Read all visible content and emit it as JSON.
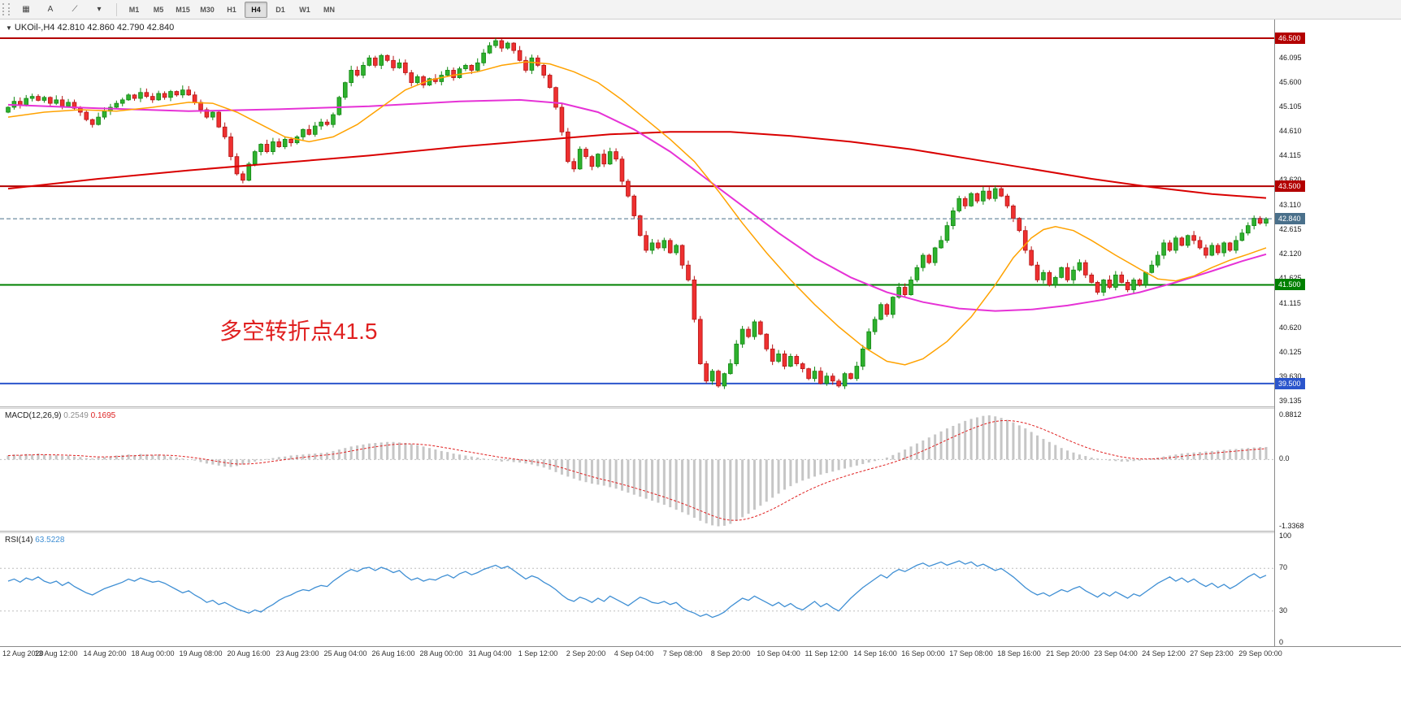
{
  "toolbar": {
    "icons": [
      {
        "name": "chart-window-icon",
        "glyph": "▦"
      },
      {
        "name": "crosshair-a-icon",
        "glyph": "A"
      },
      {
        "name": "draw-tools-icon",
        "glyph": "⟋"
      },
      {
        "name": "dropdown-caret-icon",
        "glyph": "▾"
      }
    ],
    "timeframes": [
      "M1",
      "M5",
      "M15",
      "M30",
      "H1",
      "H4",
      "D1",
      "W1",
      "MN"
    ],
    "active_timeframe": "H4"
  },
  "header": {
    "collapse_glyph": "▼",
    "symbol_period": "UKOil-,H4",
    "ohlc": "42.810 42.860 42.790 42.840"
  },
  "chart_data": {
    "type": "candlestick_with_indicators",
    "symbol": "UKOil-",
    "timeframe": "H4",
    "annotation": {
      "text": "多空转折点41.5",
      "color": "#e02020"
    },
    "price_axis": [
      "46.095",
      "45.600",
      "45.105",
      "44.610",
      "44.115",
      "43.620",
      "43.110",
      "42.615",
      "42.120",
      "41.625",
      "41.115",
      "40.620",
      "40.125",
      "39.630",
      "39.135"
    ],
    "hlines": [
      {
        "label": "46.500",
        "value": 46.5,
        "color": "#b30000"
      },
      {
        "label": "43.500",
        "value": 43.5,
        "color": "#b30000"
      },
      {
        "label": "41.500",
        "value": 41.5,
        "color": "#008000"
      },
      {
        "label": "39.500",
        "value": 39.5,
        "color": "#2b55cc"
      }
    ],
    "current_price": {
      "label": "42.840",
      "value": 42.84,
      "color": "#4a708b"
    },
    "x_labels": [
      "12 Aug 2020",
      "13 Aug 12:00",
      "14 Aug 20:00",
      "18 Aug 00:00",
      "19 Aug 08:00",
      "20 Aug 16:00",
      "23 Aug 23:00",
      "25 Aug 04:00",
      "26 Aug 16:00",
      "28 Aug 00:00",
      "31 Aug 04:00",
      "1 Sep 12:00",
      "2 Sep 20:00",
      "4 Sep 04:00",
      "7 Sep 08:00",
      "8 Sep 20:00",
      "10 Sep 04:00",
      "11 Sep 12:00",
      "14 Sep 16:00",
      "16 Sep 00:00",
      "17 Sep 08:00",
      "18 Sep 16:00",
      "21 Sep 20:00",
      "23 Sep 04:00",
      "24 Sep 12:00",
      "27 Sep 23:00",
      "29 Sep 00:00"
    ],
    "colors": {
      "up_fill": "#2eb12e",
      "up_stroke": "#128712",
      "down_fill": "#ee3030",
      "down_stroke": "#b51515",
      "ma_slow": "#d90000",
      "ma_mid": "#e632d6",
      "ma_fast": "#ffa200",
      "macd_hist": "#c6c6c6",
      "macd_signal": "#e02020",
      "rsi_line": "#3f8fd4",
      "level_dotted": "#bdbdbd"
    },
    "candles": {
      "first_open": 45.0,
      "closes": [
        45.1,
        45.22,
        45.15,
        45.28,
        45.32,
        45.24,
        45.3,
        45.18,
        45.25,
        45.12,
        45.2,
        45.08,
        45.0,
        44.85,
        44.75,
        44.9,
        45.02,
        45.1,
        45.18,
        45.25,
        45.35,
        45.28,
        45.4,
        45.32,
        45.25,
        45.38,
        45.3,
        45.42,
        45.35,
        45.45,
        45.35,
        45.2,
        45.05,
        44.9,
        45.0,
        44.7,
        44.5,
        44.1,
        43.75,
        43.62,
        43.95,
        44.2,
        44.35,
        44.2,
        44.4,
        44.3,
        44.45,
        44.38,
        44.5,
        44.65,
        44.55,
        44.72,
        44.8,
        44.75,
        44.95,
        45.3,
        45.6,
        45.85,
        45.75,
        45.95,
        46.1,
        45.95,
        46.15,
        46.05,
        45.9,
        46.0,
        45.8,
        45.6,
        45.72,
        45.55,
        45.68,
        45.62,
        45.75,
        45.85,
        45.7,
        45.88,
        45.95,
        45.85,
        46.0,
        46.2,
        46.35,
        46.45,
        46.3,
        46.4,
        46.25,
        46.05,
        45.85,
        46.1,
        45.95,
        45.75,
        45.5,
        45.1,
        44.6,
        44.0,
        43.85,
        44.25,
        44.1,
        43.9,
        44.15,
        43.95,
        44.2,
        44.05,
        43.6,
        43.3,
        42.9,
        42.5,
        42.2,
        42.35,
        42.25,
        42.4,
        42.15,
        42.3,
        41.9,
        41.6,
        40.8,
        39.9,
        39.55,
        39.75,
        39.45,
        39.7,
        39.9,
        40.3,
        40.6,
        40.45,
        40.75,
        40.5,
        40.2,
        39.95,
        40.1,
        39.85,
        40.05,
        39.9,
        39.8,
        39.6,
        39.75,
        39.5,
        39.65,
        39.55,
        39.45,
        39.7,
        39.6,
        39.85,
        40.2,
        40.55,
        40.8,
        41.1,
        40.9,
        41.25,
        41.45,
        41.3,
        41.6,
        41.85,
        42.1,
        41.95,
        42.25,
        42.4,
        42.7,
        43.0,
        43.25,
        43.1,
        43.35,
        43.2,
        43.4,
        43.25,
        43.45,
        43.3,
        43.1,
        42.85,
        42.6,
        42.2,
        41.9,
        41.6,
        41.75,
        41.5,
        41.65,
        41.85,
        41.6,
        41.8,
        41.95,
        41.7,
        41.55,
        41.35,
        41.6,
        41.45,
        41.7,
        41.55,
        41.4,
        41.6,
        41.5,
        41.75,
        41.9,
        42.1,
        42.35,
        42.2,
        42.45,
        42.3,
        42.5,
        42.4,
        42.25,
        42.1,
        42.3,
        42.15,
        42.35,
        42.2,
        42.4,
        42.55,
        42.7,
        42.85,
        42.75,
        42.84
      ]
    },
    "ma": {
      "slow_red": [
        [
          0,
          43.45
        ],
        [
          15,
          43.65
        ],
        [
          30,
          43.82
        ],
        [
          45,
          43.97
        ],
        [
          60,
          44.12
        ],
        [
          75,
          44.3
        ],
        [
          90,
          44.45
        ],
        [
          100,
          44.55
        ],
        [
          110,
          44.6
        ],
        [
          120,
          44.6
        ],
        [
          130,
          44.52
        ],
        [
          140,
          44.4
        ],
        [
          150,
          44.25
        ],
        [
          160,
          44.05
        ],
        [
          170,
          43.85
        ],
        [
          180,
          43.65
        ],
        [
          190,
          43.48
        ],
        [
          200,
          43.34
        ],
        [
          209,
          43.26
        ]
      ],
      "mid_magenta": [
        [
          0,
          45.15
        ],
        [
          15,
          45.08
        ],
        [
          30,
          45.02
        ],
        [
          45,
          45.06
        ],
        [
          60,
          45.12
        ],
        [
          75,
          45.22
        ],
        [
          85,
          45.25
        ],
        [
          92,
          45.18
        ],
        [
          98,
          45.0
        ],
        [
          104,
          44.65
        ],
        [
          110,
          44.2
        ],
        [
          116,
          43.65
        ],
        [
          122,
          43.1
        ],
        [
          128,
          42.55
        ],
        [
          134,
          42.05
        ],
        [
          140,
          41.65
        ],
        [
          146,
          41.35
        ],
        [
          152,
          41.15
        ],
        [
          158,
          41.02
        ],
        [
          164,
          40.97
        ],
        [
          170,
          41.0
        ],
        [
          176,
          41.08
        ],
        [
          182,
          41.2
        ],
        [
          188,
          41.35
        ],
        [
          194,
          41.55
        ],
        [
          200,
          41.78
        ],
        [
          205,
          41.98
        ],
        [
          209,
          42.12
        ]
      ],
      "fast_orange": [
        [
          0,
          44.9
        ],
        [
          6,
          45.0
        ],
        [
          12,
          45.05
        ],
        [
          18,
          45.02
        ],
        [
          24,
          45.1
        ],
        [
          30,
          45.2
        ],
        [
          34,
          45.18
        ],
        [
          38,
          45.0
        ],
        [
          42,
          44.75
        ],
        [
          46,
          44.5
        ],
        [
          50,
          44.4
        ],
        [
          54,
          44.5
        ],
        [
          58,
          44.75
        ],
        [
          62,
          45.1
        ],
        [
          66,
          45.45
        ],
        [
          70,
          45.65
        ],
        [
          74,
          45.75
        ],
        [
          78,
          45.82
        ],
        [
          82,
          45.95
        ],
        [
          86,
          46.02
        ],
        [
          90,
          45.98
        ],
        [
          94,
          45.82
        ],
        [
          98,
          45.6
        ],
        [
          102,
          45.25
        ],
        [
          106,
          44.85
        ],
        [
          110,
          44.45
        ],
        [
          114,
          44.0
        ],
        [
          118,
          43.4
        ],
        [
          122,
          42.75
        ],
        [
          126,
          42.15
        ],
        [
          130,
          41.6
        ],
        [
          134,
          41.1
        ],
        [
          138,
          40.65
        ],
        [
          142,
          40.25
        ],
        [
          146,
          39.95
        ],
        [
          149,
          39.88
        ],
        [
          152,
          40.0
        ],
        [
          156,
          40.35
        ],
        [
          160,
          40.85
        ],
        [
          164,
          41.5
        ],
        [
          167,
          42.05
        ],
        [
          170,
          42.45
        ],
        [
          172,
          42.62
        ],
        [
          174,
          42.68
        ],
        [
          177,
          42.6
        ],
        [
          180,
          42.4
        ],
        [
          184,
          42.1
        ],
        [
          188,
          41.82
        ],
        [
          191,
          41.62
        ],
        [
          194,
          41.58
        ],
        [
          197,
          41.68
        ],
        [
          200,
          41.85
        ],
        [
          203,
          42.0
        ],
        [
          206,
          42.12
        ],
        [
          209,
          42.25
        ]
      ]
    },
    "macd": {
      "label": "MACD(12,26,9)",
      "value_main": "0.2549",
      "value_signal": "0.1695",
      "axis": [
        {
          "label": "0.8812",
          "value": 0.8812
        },
        {
          "label": "0.0",
          "value": 0
        },
        {
          "label": "-1.3368",
          "value": -1.3368
        }
      ],
      "values": [
        0.08,
        0.1,
        0.09,
        0.11,
        0.1,
        0.12,
        0.1,
        0.08,
        0.09,
        0.07,
        0.08,
        0.06,
        0.05,
        0.03,
        0.02,
        0.04,
        0.05,
        0.06,
        0.08,
        0.09,
        0.1,
        0.09,
        0.11,
        0.1,
        0.09,
        0.1,
        0.08,
        0.06,
        0.04,
        0.02,
        0.0,
        -0.02,
        -0.05,
        -0.08,
        -0.1,
        -0.12,
        -0.14,
        -0.15,
        -0.13,
        -0.1,
        -0.07,
        -0.04,
        -0.02,
        0.01,
        0.03,
        0.05,
        0.06,
        0.08,
        0.09,
        0.1,
        0.11,
        0.12,
        0.13,
        0.14,
        0.17,
        0.2,
        0.23,
        0.26,
        0.28,
        0.3,
        0.32,
        0.33,
        0.34,
        0.35,
        0.35,
        0.34,
        0.33,
        0.31,
        0.29,
        0.26,
        0.23,
        0.2,
        0.17,
        0.15,
        0.12,
        0.1,
        0.08,
        0.06,
        0.04,
        0.02,
        0.0,
        -0.02,
        -0.04,
        -0.03,
        -0.05,
        -0.06,
        -0.08,
        -0.1,
        -0.13,
        -0.16,
        -0.2,
        -0.25,
        -0.3,
        -0.34,
        -0.38,
        -0.42,
        -0.45,
        -0.48,
        -0.5,
        -0.52,
        -0.55,
        -0.58,
        -0.62,
        -0.66,
        -0.7,
        -0.74,
        -0.78,
        -0.82,
        -0.86,
        -0.9,
        -0.95,
        -1.0,
        -1.05,
        -1.1,
        -1.16,
        -1.22,
        -1.27,
        -1.31,
        -1.33,
        -1.32,
        -1.28,
        -1.22,
        -1.15,
        -1.08,
        -1.0,
        -0.92,
        -0.84,
        -0.76,
        -0.68,
        -0.6,
        -0.53,
        -0.47,
        -0.42,
        -0.38,
        -0.34,
        -0.3,
        -0.27,
        -0.24,
        -0.21,
        -0.18,
        -0.15,
        -0.12,
        -0.09,
        -0.06,
        -0.03,
        0.0,
        0.04,
        0.09,
        0.14,
        0.2,
        0.26,
        0.32,
        0.38,
        0.44,
        0.5,
        0.56,
        0.62,
        0.67,
        0.72,
        0.77,
        0.81,
        0.84,
        0.87,
        0.88,
        0.86,
        0.83,
        0.79,
        0.74,
        0.68,
        0.62,
        0.55,
        0.48,
        0.41,
        0.35,
        0.29,
        0.23,
        0.18,
        0.14,
        0.1,
        0.07,
        0.04,
        0.02,
        0.0,
        -0.02,
        -0.03,
        -0.04,
        -0.04,
        -0.03,
        -0.02,
        0.0,
        0.02,
        0.04,
        0.06,
        0.08,
        0.1,
        0.12,
        0.13,
        0.14,
        0.15,
        0.16,
        0.17,
        0.18,
        0.19,
        0.2,
        0.21,
        0.22,
        0.23,
        0.24,
        0.25,
        0.25
      ]
    },
    "rsi": {
      "label": "RSI(14)",
      "value": "63.5228",
      "axis": [
        {
          "label": "100",
          "value": 100
        },
        {
          "label": "70",
          "value": 70
        },
        {
          "label": "30",
          "value": 30
        },
        {
          "label": "0",
          "value": 0
        }
      ],
      "levels": [
        70,
        30
      ],
      "values": [
        58,
        60,
        57,
        61,
        59,
        62,
        58,
        56,
        58,
        54,
        57,
        53,
        50,
        47,
        45,
        48,
        51,
        53,
        55,
        57,
        60,
        58,
        61,
        59,
        57,
        58,
        56,
        53,
        50,
        47,
        49,
        45,
        42,
        38,
        40,
        36,
        38,
        35,
        32,
        30,
        28,
        31,
        29,
        33,
        36,
        40,
        43,
        45,
        48,
        50,
        49,
        52,
        54,
        53,
        58,
        62,
        66,
        69,
        67,
        70,
        71,
        68,
        71,
        69,
        66,
        68,
        63,
        59,
        61,
        58,
        60,
        59,
        62,
        64,
        61,
        65,
        67,
        64,
        66,
        69,
        71,
        73,
        70,
        72,
        68,
        64,
        60,
        63,
        61,
        57,
        54,
        50,
        45,
        41,
        39,
        43,
        41,
        38,
        42,
        39,
        44,
        41,
        38,
        35,
        39,
        43,
        41,
        38,
        37,
        39,
        36,
        38,
        33,
        30,
        28,
        25,
        27,
        24,
        26,
        29,
        34,
        38,
        42,
        40,
        44,
        41,
        38,
        35,
        38,
        34,
        37,
        33,
        31,
        35,
        39,
        34,
        37,
        33,
        30,
        36,
        42,
        47,
        52,
        56,
        60,
        64,
        61,
        66,
        69,
        67,
        70,
        73,
        75,
        72,
        74,
        76,
        73,
        75,
        77,
        74,
        76,
        72,
        74,
        71,
        68,
        70,
        66,
        62,
        57,
        52,
        48,
        45,
        47,
        44,
        47,
        50,
        48,
        51,
        53,
        49,
        46,
        43,
        47,
        44,
        48,
        45,
        42,
        46,
        44,
        48,
        52,
        56,
        59,
        62,
        58,
        61,
        57,
        60,
        56,
        53,
        56,
        52,
        55,
        51,
        54,
        58,
        62,
        65,
        61,
        63.52
      ]
    }
  }
}
